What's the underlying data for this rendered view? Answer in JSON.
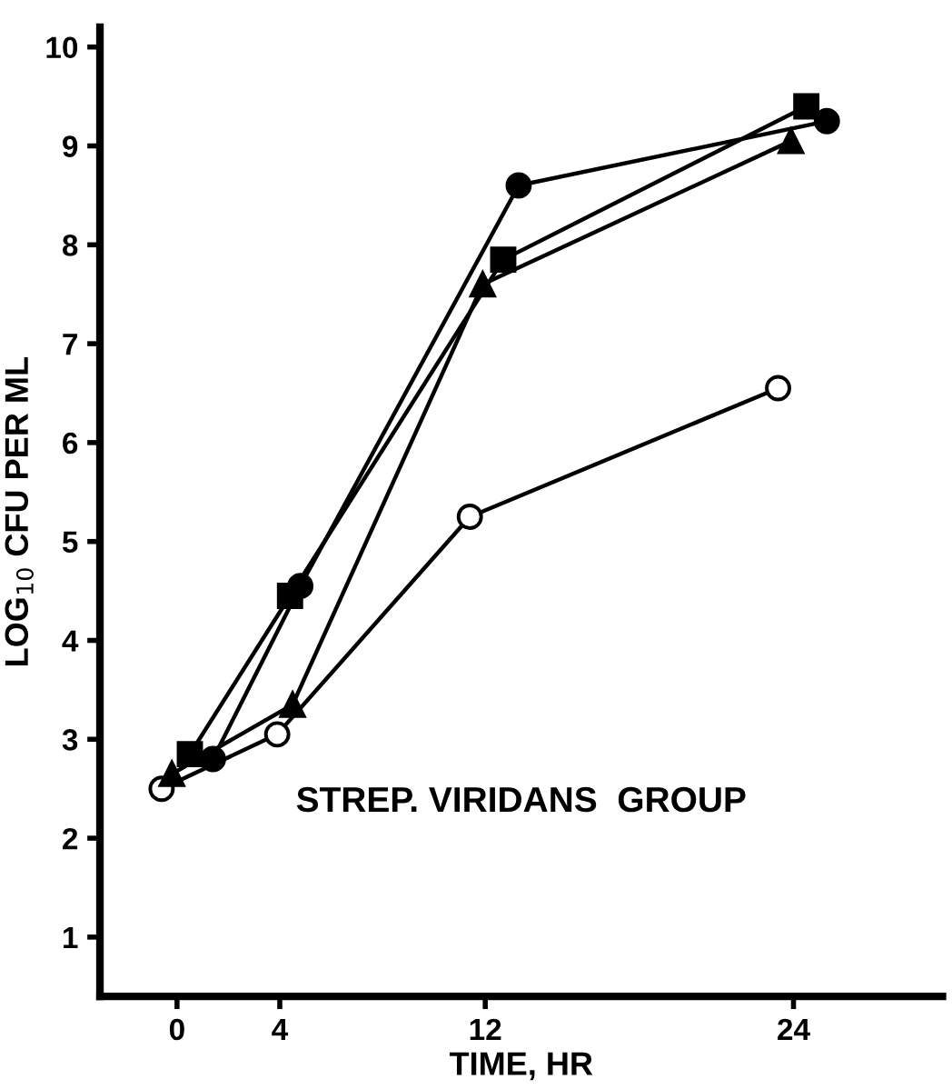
{
  "chart_data": {
    "type": "line",
    "xlabel": "TIME, HR",
    "ylabel": "LOG$_{10}$ CFU PER ML",
    "xlim": [
      -3,
      29.8
    ],
    "ylim": [
      0.4,
      10.2
    ],
    "xticks": [
      0,
      4,
      12,
      24
    ],
    "yticks": [
      1,
      2,
      3,
      4,
      5,
      6,
      7,
      8,
      9,
      10
    ],
    "grid": false,
    "line_style": "solid",
    "annotations": [
      "STREP. VIRIDANS  GROUP"
    ],
    "series": [
      {
        "color": "#ffffff",
        "marker": "circle",
        "x": [
          -0.6,
          3.9,
          11.4,
          23.4
        ],
        "values": [
          2.5,
          3.05,
          5.25,
          6.55
        ]
      },
      {
        "color": "#000000",
        "marker": "circle",
        "x": [
          1.4,
          4.8,
          13.3,
          25.3
        ],
        "values": [
          2.8,
          4.55,
          8.6,
          9.25
        ]
      },
      {
        "color": "#000000",
        "marker": "square",
        "x": [
          0.5,
          4.4,
          12.7,
          24.5
        ],
        "values": [
          2.85,
          4.45,
          7.85,
          9.4
        ]
      },
      {
        "color": "#000000",
        "marker": "triangle",
        "x": [
          -0.2,
          4.5,
          11.9,
          23.9
        ],
        "values": [
          2.65,
          3.35,
          7.6,
          9.05
        ]
      }
    ]
  }
}
